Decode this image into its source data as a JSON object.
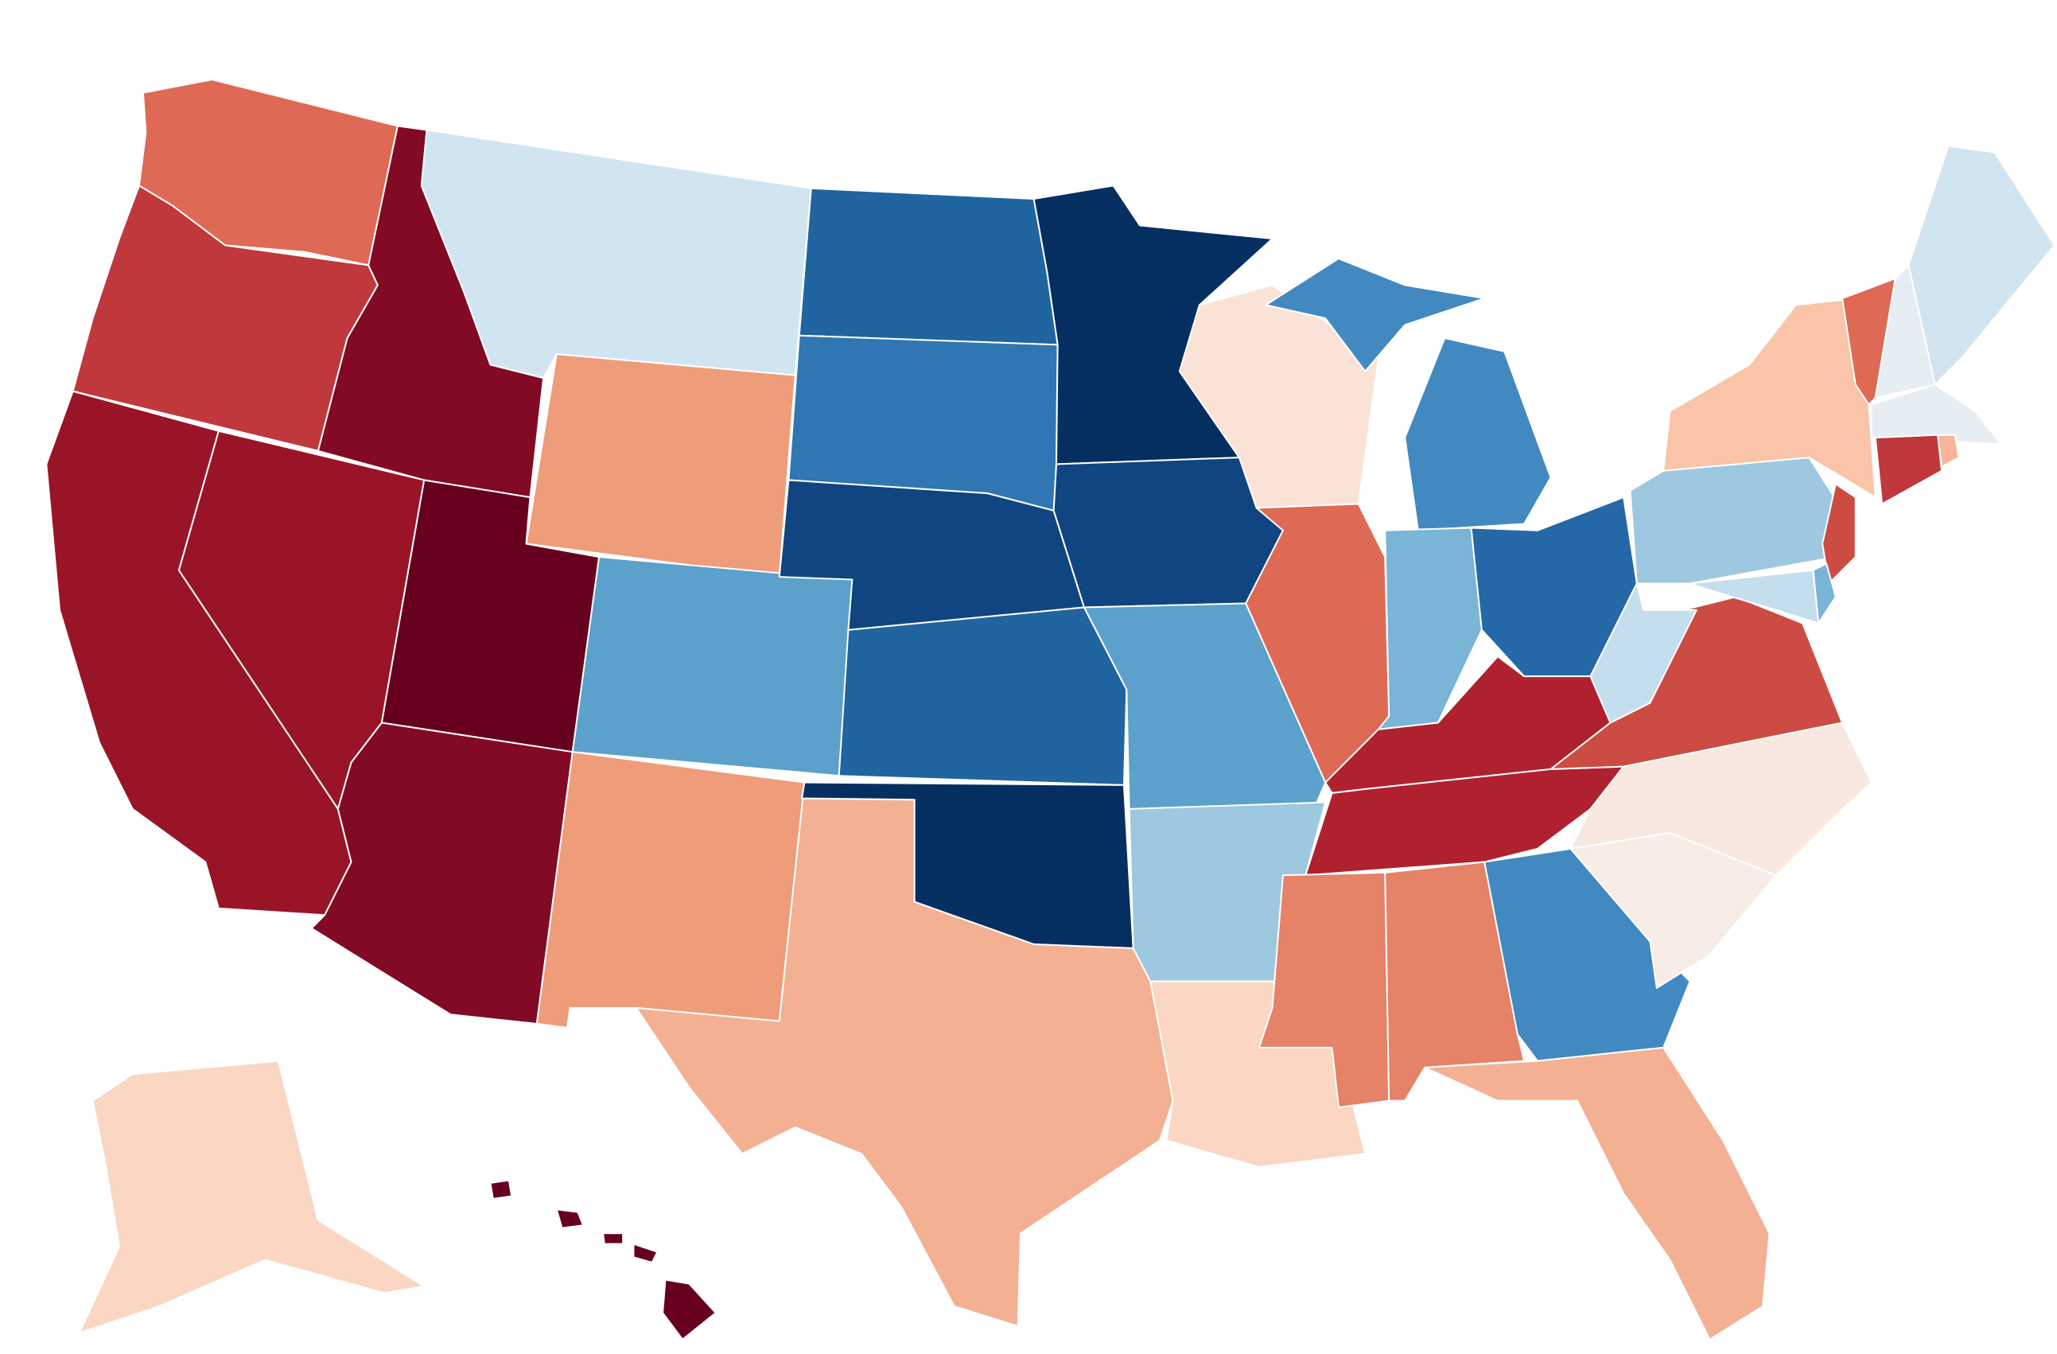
{
  "map": {
    "type": "choropleth",
    "region": "United States",
    "background": "#ffffff",
    "border_color": "#ffffff",
    "states": [
      {
        "id": "WA",
        "fill": "#de6a56"
      },
      {
        "id": "OR",
        "fill": "#c0383b"
      },
      {
        "id": "CA",
        "fill": "#9a1428"
      },
      {
        "id": "NV",
        "fill": "#9a1428"
      },
      {
        "id": "ID",
        "fill": "#820a24"
      },
      {
        "id": "MT",
        "fill": "#d1e5f0"
      },
      {
        "id": "WY",
        "fill": "#ef9c7b"
      },
      {
        "id": "UT",
        "fill": "#67001f"
      },
      {
        "id": "AZ",
        "fill": "#820a24"
      },
      {
        "id": "CO",
        "fill": "#5ba1cb"
      },
      {
        "id": "NM",
        "fill": "#ef9c7b"
      },
      {
        "id": "TX",
        "fill": "#f4b092"
      },
      {
        "id": "ND",
        "fill": "#2064a0"
      },
      {
        "id": "SD",
        "fill": "#3076b2"
      },
      {
        "id": "NE",
        "fill": "#114581"
      },
      {
        "id": "KS",
        "fill": "#2064a0"
      },
      {
        "id": "OK",
        "fill": "#062f61"
      },
      {
        "id": "MN",
        "fill": "#062f61"
      },
      {
        "id": "IA",
        "fill": "#114581"
      },
      {
        "id": "MO",
        "fill": "#5ba1cb"
      },
      {
        "id": "AR",
        "fill": "#9dc8e0"
      },
      {
        "id": "LA",
        "fill": "#fbd6c2"
      },
      {
        "id": "WI",
        "fill": "#fbe2d6"
      },
      {
        "id": "IL",
        "fill": "#de6a56"
      },
      {
        "id": "MI",
        "fill": "#4189c0"
      },
      {
        "id": "IN",
        "fill": "#7ab4d6"
      },
      {
        "id": "OH",
        "fill": "#2468a8"
      },
      {
        "id": "KY",
        "fill": "#b0212f"
      },
      {
        "id": "TN",
        "fill": "#b0212f"
      },
      {
        "id": "MS",
        "fill": "#e58267"
      },
      {
        "id": "AL",
        "fill": "#e58267"
      },
      {
        "id": "GA",
        "fill": "#4189c0"
      },
      {
        "id": "FL",
        "fill": "#f4b092"
      },
      {
        "id": "SC",
        "fill": "#f8ece6"
      },
      {
        "id": "NC",
        "fill": "#f8e8e0"
      },
      {
        "id": "VA",
        "fill": "#cc4c43"
      },
      {
        "id": "WV",
        "fill": "#c5deed"
      },
      {
        "id": "PA",
        "fill": "#9dc8e0"
      },
      {
        "id": "NY",
        "fill": "#f9c4a8"
      },
      {
        "id": "VT",
        "fill": "#de6a56"
      },
      {
        "id": "NH",
        "fill": "#e6eef4"
      },
      {
        "id": "ME",
        "fill": "#d1e5f0"
      },
      {
        "id": "MA",
        "fill": "#e6eef4"
      },
      {
        "id": "RI",
        "fill": "#f6b599"
      },
      {
        "id": "CT",
        "fill": "#c0383b"
      },
      {
        "id": "NJ",
        "fill": "#cc4c43"
      },
      {
        "id": "DE",
        "fill": "#7ab4d6"
      },
      {
        "id": "MD",
        "fill": "#c5deed"
      },
      {
        "id": "AK",
        "fill": "#fbd6c2"
      },
      {
        "id": "HI",
        "fill": "#67001f"
      }
    ]
  }
}
